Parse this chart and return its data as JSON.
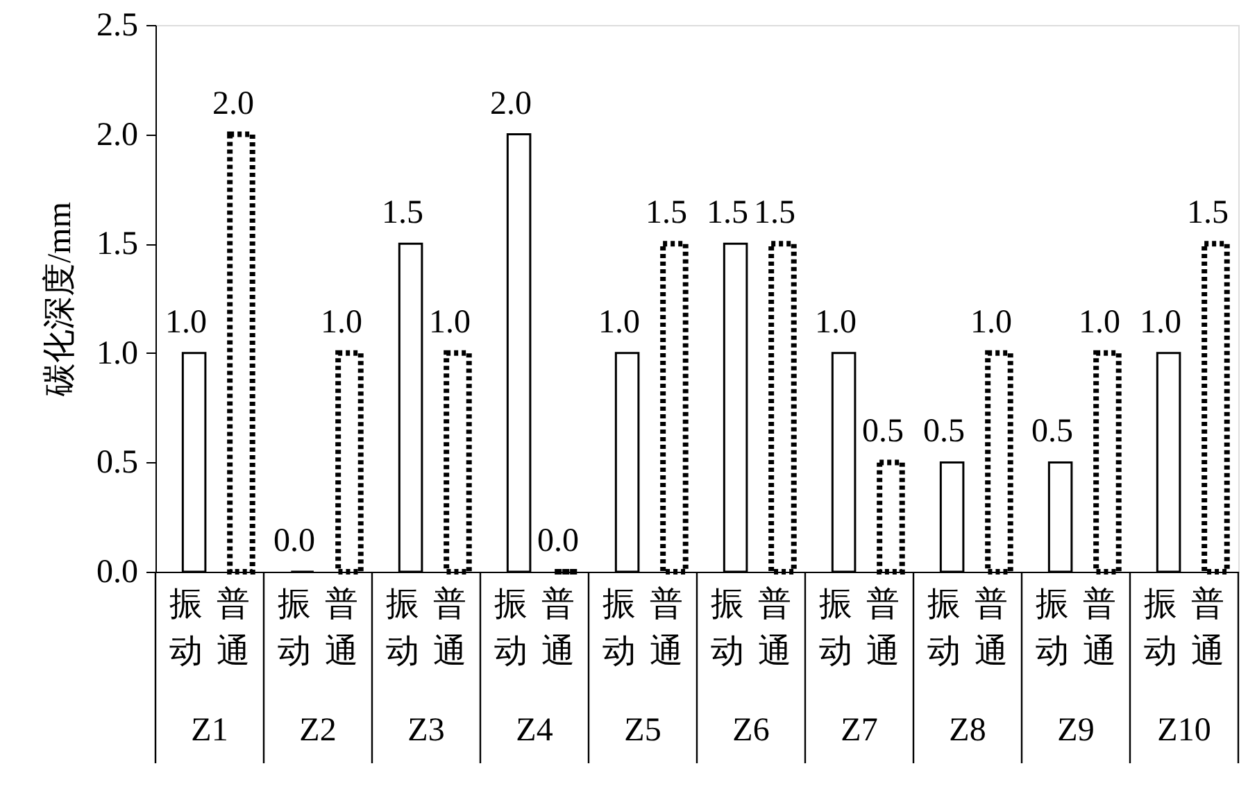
{
  "chart_data": {
    "type": "bar",
    "ylabel": "碳化深度/mm",
    "categories": [
      "Z1",
      "Z2",
      "Z3",
      "Z4",
      "Z5",
      "Z6",
      "Z7",
      "Z8",
      "Z9",
      "Z10"
    ],
    "series": [
      {
        "name": "振动",
        "color": "#000000",
        "line_style": "solid",
        "values": [
          1.0,
          0.0,
          1.5,
          2.0,
          1.0,
          1.5,
          1.0,
          0.5,
          0.5,
          1.0
        ],
        "value_labels": [
          "1.0",
          "0.0",
          "1.5",
          "2.0",
          "1.0",
          "1.5",
          "1.0",
          "0.5",
          "0.5",
          "1.0"
        ]
      },
      {
        "name": "普通",
        "color": "#000000",
        "line_style": "dotted",
        "values": [
          2.0,
          1.0,
          1.0,
          0.0,
          1.5,
          1.5,
          0.5,
          1.0,
          1.0,
          1.5
        ],
        "value_labels": [
          "2.0",
          "1.0",
          "1.0",
          "0.0",
          "1.5",
          "1.5",
          "0.5",
          "1.0",
          "1.0",
          "1.5"
        ]
      }
    ],
    "ylim": [
      0,
      2.5
    ],
    "yticks": [
      {
        "value": 0,
        "label": "0.0"
      },
      {
        "value": 0.5,
        "label": "0.5"
      },
      {
        "value": 1,
        "label": "1.0"
      },
      {
        "value": 1.5,
        "label": "1.5"
      },
      {
        "value": 2,
        "label": "2.0"
      },
      {
        "value": 2.5,
        "label": "2.5"
      }
    ],
    "grid": false
  }
}
